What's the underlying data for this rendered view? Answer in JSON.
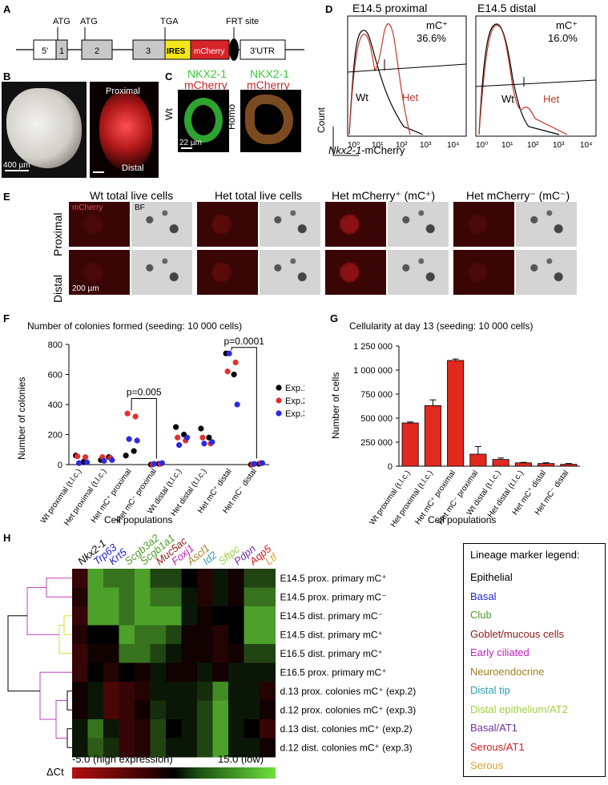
{
  "panels": {
    "A": "A",
    "B": "B",
    "C": "C",
    "D": "D",
    "E": "E",
    "F": "F",
    "G": "G",
    "H": "H"
  },
  "construct": {
    "atg1": "ATG",
    "atg2": "ATG",
    "tga": "TGA",
    "frt": "FRT site",
    "box_5": "5'",
    "box_1": "1",
    "box_2": "2",
    "box_3": "3",
    "ires": "IRES",
    "mcherry": "mCherry",
    "utr3": "3'UTR",
    "colors": {
      "ires": "#f4e61a",
      "mcherry": "#d8232a",
      "exon": "#c8c8c8"
    }
  },
  "panelB": {
    "proximal": "Proximal",
    "distal": "Distal",
    "scale": "400 µm"
  },
  "panelC": {
    "title1": "NKX2-1",
    "title1b": "mCherry",
    "title2": "NKX2-1",
    "title2b": "mCherry",
    "wt": "Wt",
    "homo": "Homo",
    "scale": "22 µm"
  },
  "panelD": {
    "plot1_title": "E14.5 proximal",
    "plot1_gate": "mC⁺",
    "plot1_pct": "36.6%",
    "plot2_title": "E14.5 distal",
    "plot2_gate": "mC⁺",
    "plot2_pct": "16.0%",
    "wt": "Wt",
    "het": "Het",
    "ylabel": "Count",
    "xlabel_gene": "Nkx2-1",
    "xlabel_rest": "-mCherry",
    "ticks": [
      "10⁰",
      "10¹",
      "10²",
      "10³",
      "10⁴"
    ],
    "colors": {
      "het": "#c0392b",
      "wt": "#000000"
    }
  },
  "panelE": {
    "headers": [
      "Wt total live cells",
      "Het total live cells",
      "Het mCherry⁺ (mC⁺)",
      "Het mCherry⁻ (mC⁻)"
    ],
    "rows": [
      "Proximal",
      "Distal"
    ],
    "mcherry_label": "mCherry",
    "bf_label": "BF",
    "scale": "200 µm"
  },
  "panelF": {
    "chart_data": {
      "type": "scatter",
      "title": "Number of colonies formed (seeding: 10 000 cells)",
      "ylabel": "Number of colonies",
      "xlabel": "Cell populations",
      "ylim": [
        0,
        800
      ],
      "yticks": [
        0,
        200,
        400,
        600,
        800
      ],
      "categories": [
        "Wt proximal (t.l.c.)",
        "Het proximal (t.l.c.)",
        "Het mC⁺ proximal",
        "Het mC⁻ proximal",
        "Wt distal (t.l.c.)",
        "Het distal (t.l.c.)",
        "Het mC⁺ distal",
        "Het mC⁻ distal"
      ],
      "series": [
        {
          "name": "Exp.1",
          "color": "#000000",
          "values": [
            [
              60,
              20
            ],
            [
              30,
              50
            ],
            [
              60,
              90
            ],
            [
              0,
              5
            ],
            [
              250,
              200
            ],
            [
              240,
              180
            ],
            [
              740,
              600
            ],
            [
              0,
              5
            ]
          ]
        },
        {
          "name": "Exp.2",
          "color": "#e03030",
          "values": [
            [
              55,
              50
            ],
            [
              50,
              45
            ],
            [
              340,
              320
            ],
            [
              0,
              5
            ],
            [
              180,
              160
            ],
            [
              180,
              140
            ],
            [
              620,
              680
            ],
            [
              0,
              10
            ]
          ]
        },
        {
          "name": "Exp.3",
          "color": "#2a2ae0",
          "values": [
            [
              10,
              15
            ],
            [
              25,
              30
            ],
            [
              170,
              160
            ],
            [
              5,
              10
            ],
            [
              130,
              180
            ],
            [
              140,
              150
            ],
            [
              740,
              400
            ],
            [
              5,
              10
            ]
          ]
        }
      ],
      "comparisons": [
        {
          "label": "p=0.005",
          "from": 2,
          "to": 3
        },
        {
          "label": "p=0.0001",
          "from": 6,
          "to": 7
        }
      ]
    }
  },
  "panelG": {
    "chart_data": {
      "type": "bar",
      "title": "Cellularity at day 13 (seeding: 10 000 cells)",
      "ylabel": "Number of cells",
      "xlabel": "Cell populations",
      "ylim": [
        0,
        1250000
      ],
      "yticks": [
        "0",
        "250 000",
        "500 000",
        "750 000",
        "1 000 000",
        "1 250 000"
      ],
      "categories": [
        "Wt proximal (t.l.c.)",
        "Het proximal (t.l.c.)",
        "Het mC⁺ proximal",
        "Het mC⁻ proximal",
        "Wt distal (t.l.c.)",
        "Het distal (t.l.c.)",
        "Het mC⁺ distal",
        "Het mC⁻ distal"
      ],
      "values": [
        450000,
        630000,
        1100000,
        125000,
        70000,
        35000,
        28000,
        20000
      ],
      "errors": [
        10000,
        60000,
        15000,
        80000,
        15000,
        5000,
        8000,
        8000
      ],
      "bar_color": "#e0291f"
    }
  },
  "panelH": {
    "genes": [
      {
        "name": "Nkx2-1",
        "color": "#000000"
      },
      {
        "name": "Trp63",
        "color": "#2323c8"
      },
      {
        "name": "Krt5",
        "color": "#2323c8"
      },
      {
        "name": "Scgb3a2",
        "color": "#4c9a2a"
      },
      {
        "name": "Scgb1a1",
        "color": "#4c9a2a"
      },
      {
        "name": "Muc5ac",
        "color": "#8b1a1a"
      },
      {
        "name": "Foxj1",
        "color": "#c020c0"
      },
      {
        "name": "Ascl1",
        "color": "#a08020"
      },
      {
        "name": "Id2",
        "color": "#30a0b0"
      },
      {
        "name": "Sftpc",
        "color": "#a0d040"
      },
      {
        "name": "Pdpn",
        "color": "#7030a0"
      },
      {
        "name": "Aqp5",
        "color": "#d02020"
      },
      {
        "name": "Ltf",
        "color": "#e0a030"
      }
    ],
    "rows": [
      "E14.5 prox. primary mC⁺",
      "E14.5 prox. primary mC⁻",
      "E14.5 dist. primary mC⁻",
      "E14.5 dist. primary mC⁺",
      "E16.5 dist. primary mC⁺",
      "E16.5 prox. primary mC⁺",
      "d.13 prox. colonies mC⁺ (exp.2)",
      "d.12 prox. colonies mC⁺ (exp.3)",
      "d.13 dist. colonies mC⁺ (exp.2)",
      "d.12 dist. colonies mC⁺ (exp.3)"
    ],
    "matrix": [
      [
        2,
        12,
        10,
        10,
        12,
        8,
        8,
        5,
        3,
        6,
        4,
        8,
        8
      ],
      [
        3,
        12,
        12,
        10,
        12,
        10,
        10,
        6,
        3,
        6,
        4,
        10,
        10
      ],
      [
        2,
        12,
        12,
        10,
        12,
        12,
        12,
        6,
        4,
        5,
        5,
        12,
        12
      ],
      [
        3,
        5,
        5,
        12,
        10,
        10,
        8,
        4,
        4,
        3,
        5,
        12,
        12
      ],
      [
        2,
        4,
        4,
        10,
        10,
        8,
        6,
        4,
        4,
        3,
        4,
        8,
        8
      ],
      [
        2,
        5,
        3,
        5,
        4,
        6,
        4,
        4,
        6,
        4,
        6,
        6,
        6
      ],
      [
        4,
        6,
        1,
        2,
        3,
        6,
        6,
        6,
        7,
        11,
        6,
        6,
        3
      ],
      [
        4,
        6,
        1,
        2,
        4,
        7,
        6,
        6,
        8,
        12,
        6,
        6,
        4
      ],
      [
        6,
        10,
        6,
        2,
        3,
        8,
        5,
        6,
        8,
        12,
        6,
        5,
        2
      ],
      [
        6,
        9,
        7,
        2,
        3,
        8,
        6,
        6,
        8,
        12,
        6,
        6,
        4
      ]
    ],
    "scale_low": "-5.0 (high expression)",
    "scale_high": "15.0 (low)",
    "delta_ct": "ΔCt"
  },
  "legend": {
    "title": "Lineage marker legend:",
    "items": [
      {
        "label": "Epithelial",
        "color": "#000000"
      },
      {
        "label": "Basal",
        "color": "#2323c8"
      },
      {
        "label": "Club",
        "color": "#4c9a2a"
      },
      {
        "label": "Goblet/mucous cells",
        "color": "#8b1a1a"
      },
      {
        "label": "Early ciliated",
        "color": "#c020c0"
      },
      {
        "label": "Neuroendocrine",
        "color": "#a08020"
      },
      {
        "label": "Distal tip",
        "color": "#30a0b0"
      },
      {
        "label": "Distal epithelium/AT2",
        "color": "#a0d040"
      },
      {
        "label": "Basal/AT1",
        "color": "#7030a0"
      },
      {
        "label": "Serous/AT1",
        "color": "#d02020"
      },
      {
        "label": "Serous",
        "color": "#e0a030"
      }
    ]
  }
}
